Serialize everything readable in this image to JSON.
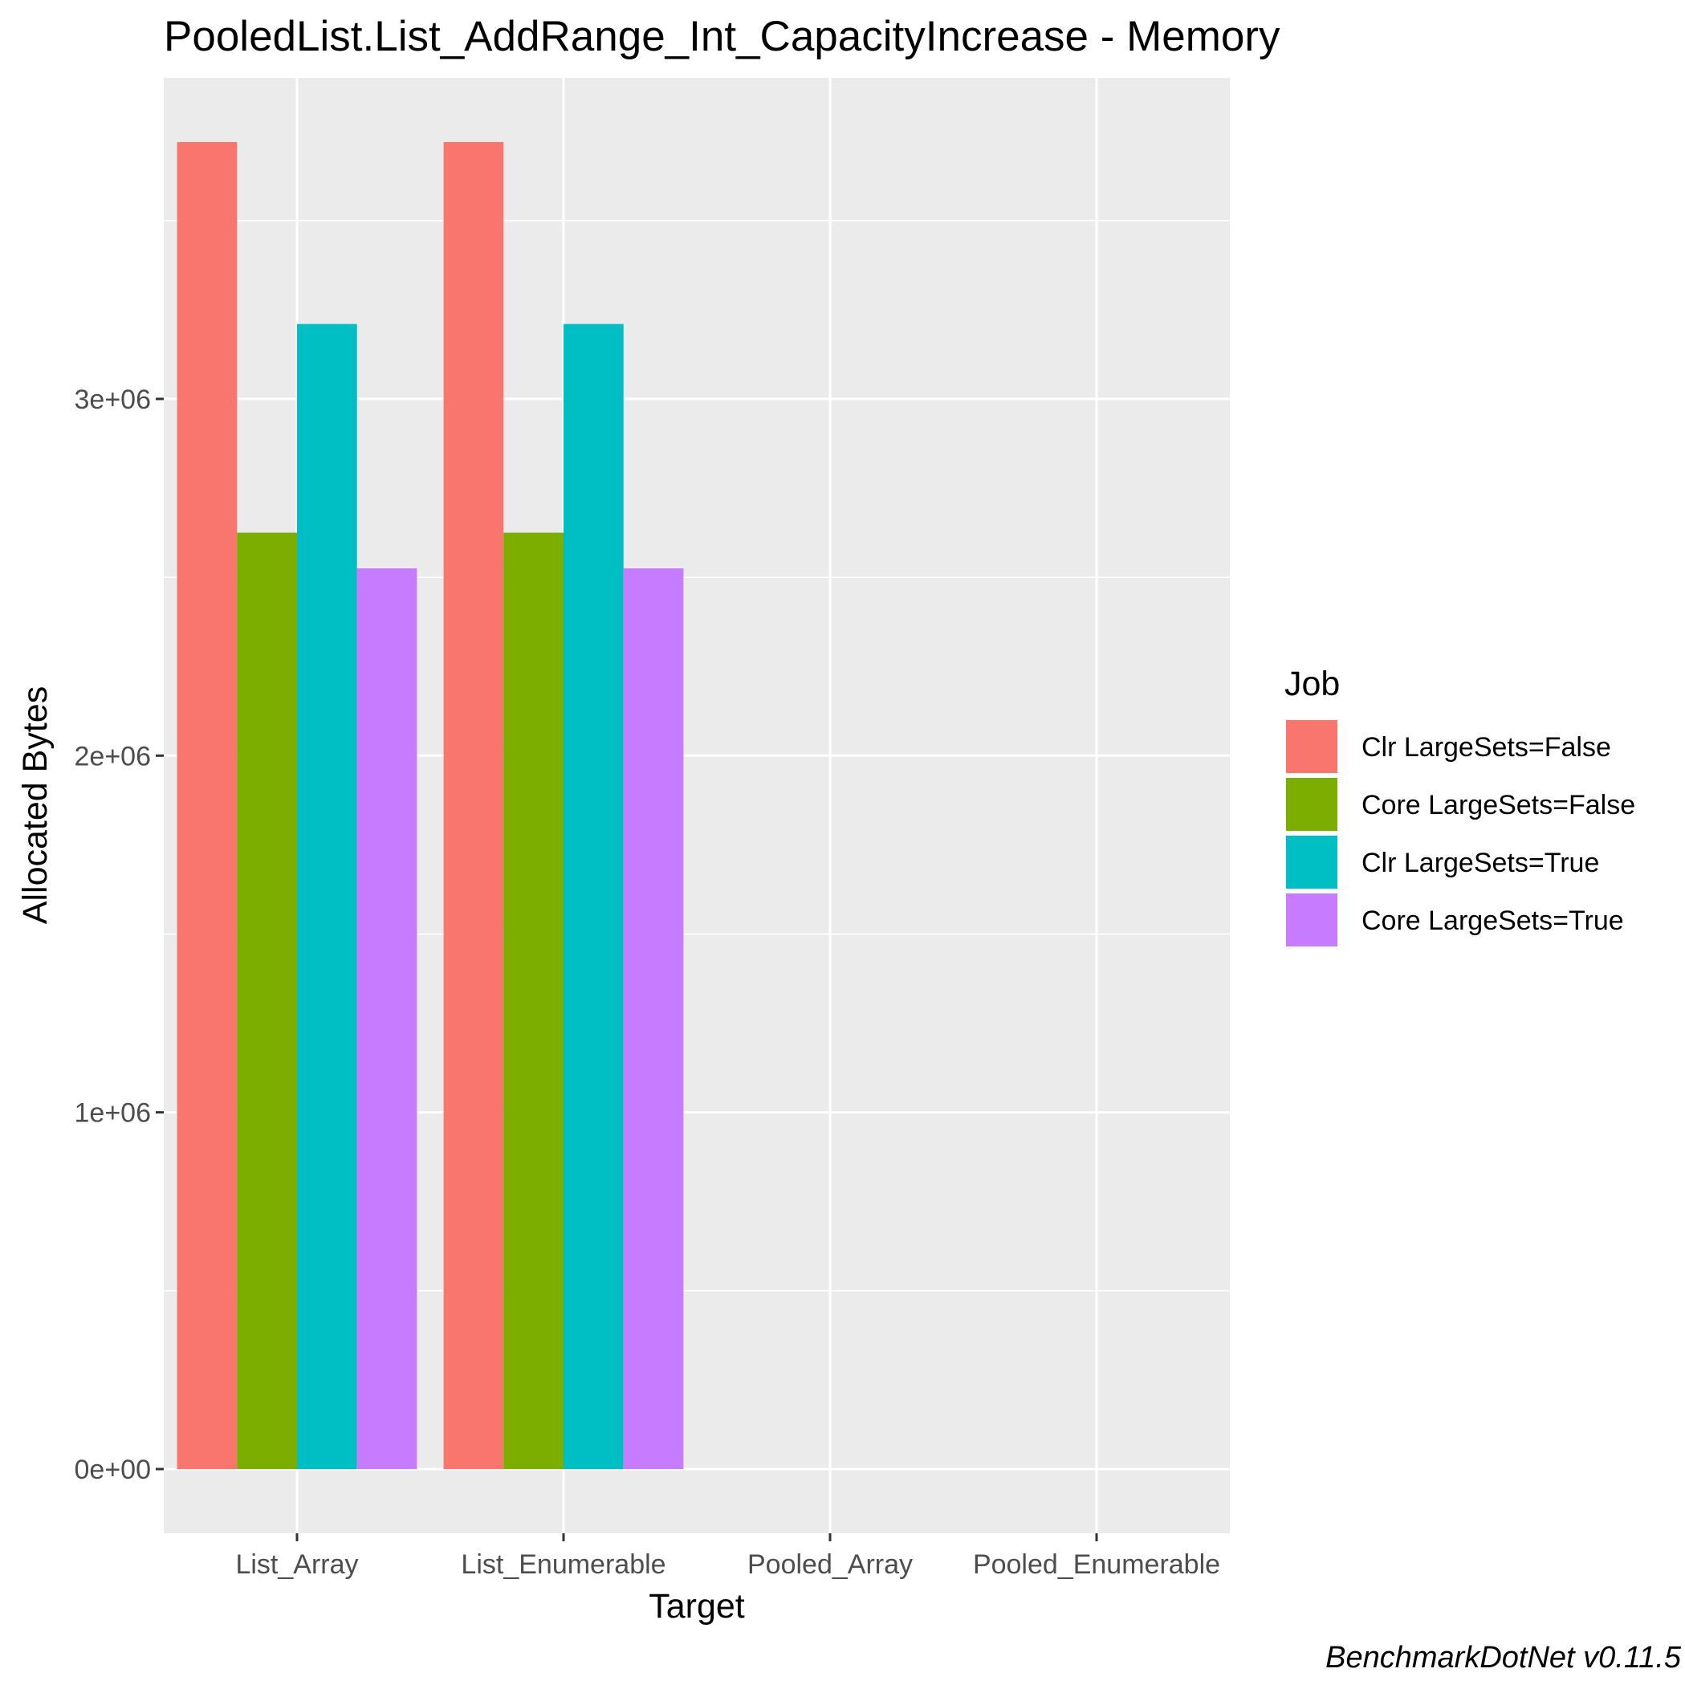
{
  "chart_data": {
    "type": "bar",
    "title": "PooledList.List_AddRange_Int_CapacityIncrease - Memory",
    "xlabel": "Target",
    "ylabel": "Allocated  Bytes",
    "categories": [
      "List_Array",
      "List_Enumerable",
      "Pooled_Array",
      "Pooled_Enumerable"
    ],
    "series": [
      {
        "name": "Clr LargeSets=False",
        "color": "#F8766D",
        "values": [
          3720000,
          3720000,
          0,
          0
        ]
      },
      {
        "name": "Core LargeSets=False",
        "color": "#7CAE00",
        "values": [
          2625000,
          2625000,
          0,
          0
        ]
      },
      {
        "name": "Clr LargeSets=True",
        "color": "#00BFC4",
        "values": [
          3210000,
          3210000,
          0,
          0
        ]
      },
      {
        "name": "Core LargeSets=True",
        "color": "#C77CFF",
        "values": [
          2525000,
          2525000,
          0,
          0
        ]
      }
    ],
    "ylim": [
      -180000,
      3900000
    ],
    "y_ticks": [
      0,
      1000000,
      2000000,
      3000000
    ],
    "y_tick_labels": [
      "0e+00",
      "1e+06",
      "2e+06",
      "3e+06"
    ],
    "grid": true,
    "legend_title": "Job",
    "legend_position": "right",
    "caption": "BenchmarkDotNet v0.11.5",
    "panel_color": "#EBEBEB"
  }
}
